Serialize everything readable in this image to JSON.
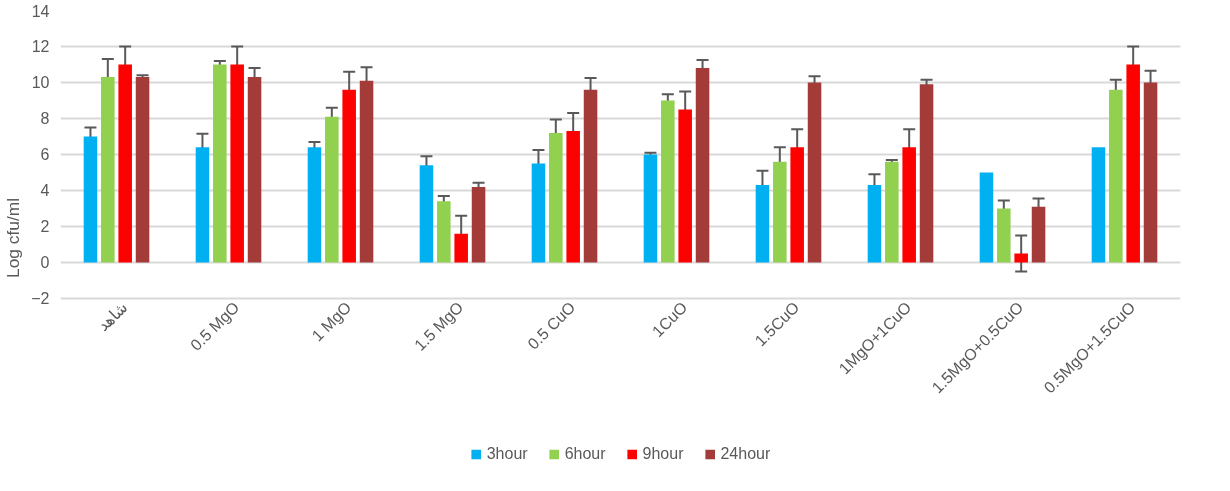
{
  "chart_data": {
    "type": "bar",
    "ylabel": "Log cfu/ml",
    "categories": [
      "شاهد",
      "0.5 MgO",
      "1 MgO",
      "1.5 MgO",
      "0.5 CuO",
      "1CuO",
      "1.5CuO",
      "1MgO+1CuO",
      "1.5MgO+0.5CuO",
      "0.5MgO+1.5CuO"
    ],
    "series": [
      {
        "name": "3hour",
        "color": "#00b0f0",
        "values": [
          7.0,
          6.4,
          6.4,
          5.4,
          5.5,
          6.0,
          4.3,
          4.3,
          5.0,
          6.4
        ],
        "errors": [
          0.5,
          0.75,
          0.3,
          0.5,
          0.75,
          0.1,
          0.8,
          0.6,
          null,
          null
        ]
      },
      {
        "name": "6hour",
        "color": "#92d050",
        "values": [
          10.3,
          11.0,
          8.1,
          3.4,
          7.2,
          9.0,
          5.6,
          5.6,
          3.0,
          9.6
        ],
        "errors": [
          1.0,
          0.2,
          0.5,
          0.3,
          0.75,
          0.35,
          0.8,
          0.1,
          0.45,
          0.55
        ]
      },
      {
        "name": "9hour",
        "color": "#ff0000",
        "values": [
          11.0,
          11.0,
          9.6,
          1.6,
          7.3,
          8.5,
          6.4,
          6.4,
          0.5,
          11.0
        ],
        "errors": [
          1.0,
          1.0,
          1.0,
          1.0,
          1.0,
          1.0,
          1.0,
          1.0,
          1.0,
          1.0
        ]
      },
      {
        "name": "24hour",
        "color": "#a33b39",
        "values": [
          10.3,
          10.3,
          10.1,
          4.2,
          9.6,
          10.8,
          10.0,
          9.9,
          3.1,
          10.0
        ],
        "errors": [
          0.1,
          0.5,
          0.75,
          0.23,
          0.65,
          0.45,
          0.35,
          0.25,
          0.45,
          0.65
        ]
      }
    ],
    "ylim": [
      -2,
      14
    ],
    "yticks": [
      -2,
      0,
      2,
      4,
      6,
      8,
      10,
      12,
      14
    ],
    "grid": "y",
    "legend": "bottom"
  }
}
